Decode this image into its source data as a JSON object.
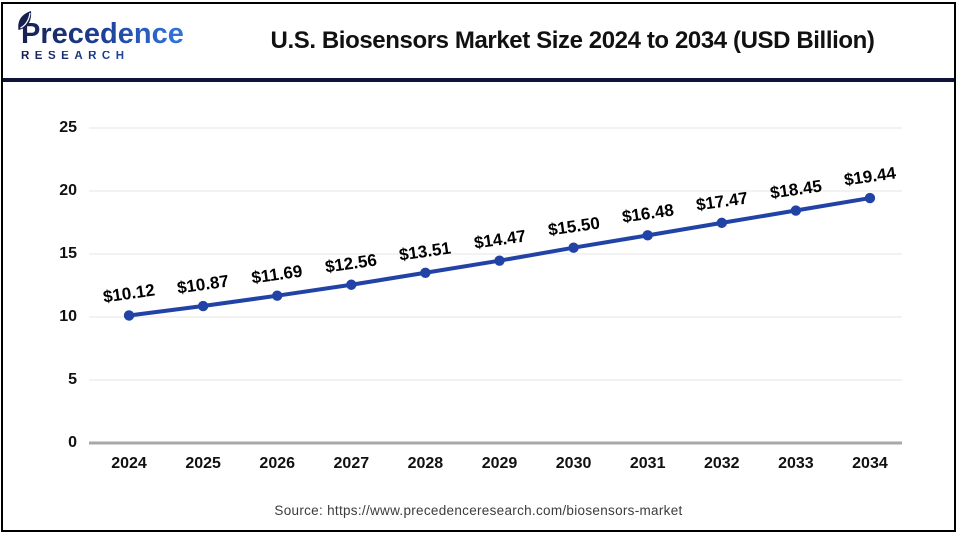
{
  "header": {
    "logo": {
      "line1": "Precedence",
      "line2": "RESEARCH"
    },
    "title": "U.S. Biosensors Market Size 2024 to 2034 (USD Billion)"
  },
  "chart_data": {
    "type": "line",
    "title": "U.S. Biosensors Market Size 2024 to 2034 (USD Billion)",
    "categories": [
      "2024",
      "2025",
      "2026",
      "2027",
      "2028",
      "2029",
      "2030",
      "2031",
      "2032",
      "2033",
      "2034"
    ],
    "values": [
      10.12,
      10.87,
      11.69,
      12.56,
      13.51,
      14.47,
      15.5,
      16.48,
      17.47,
      18.45,
      19.44
    ],
    "point_labels": [
      "$10.12",
      "$10.87",
      "$11.69",
      "$12.56",
      "$13.51",
      "$14.47",
      "$15.50",
      "$16.48",
      "$17.47",
      "$18.45",
      "$19.44"
    ],
    "unit": "USD Billion",
    "xlabel": "",
    "ylabel": "",
    "ylim": [
      0,
      25
    ],
    "yticks": [
      0,
      5,
      10,
      15,
      20,
      25
    ],
    "grid": true,
    "legend": "none",
    "line_color": "#2243a6",
    "marker_color": "#2243a6",
    "grid_color": "#e4e4e4",
    "axis_color": "#a8a8a8"
  },
  "footer": {
    "source": "Source: https://www.precedenceresearch.com/biosensors-market"
  }
}
